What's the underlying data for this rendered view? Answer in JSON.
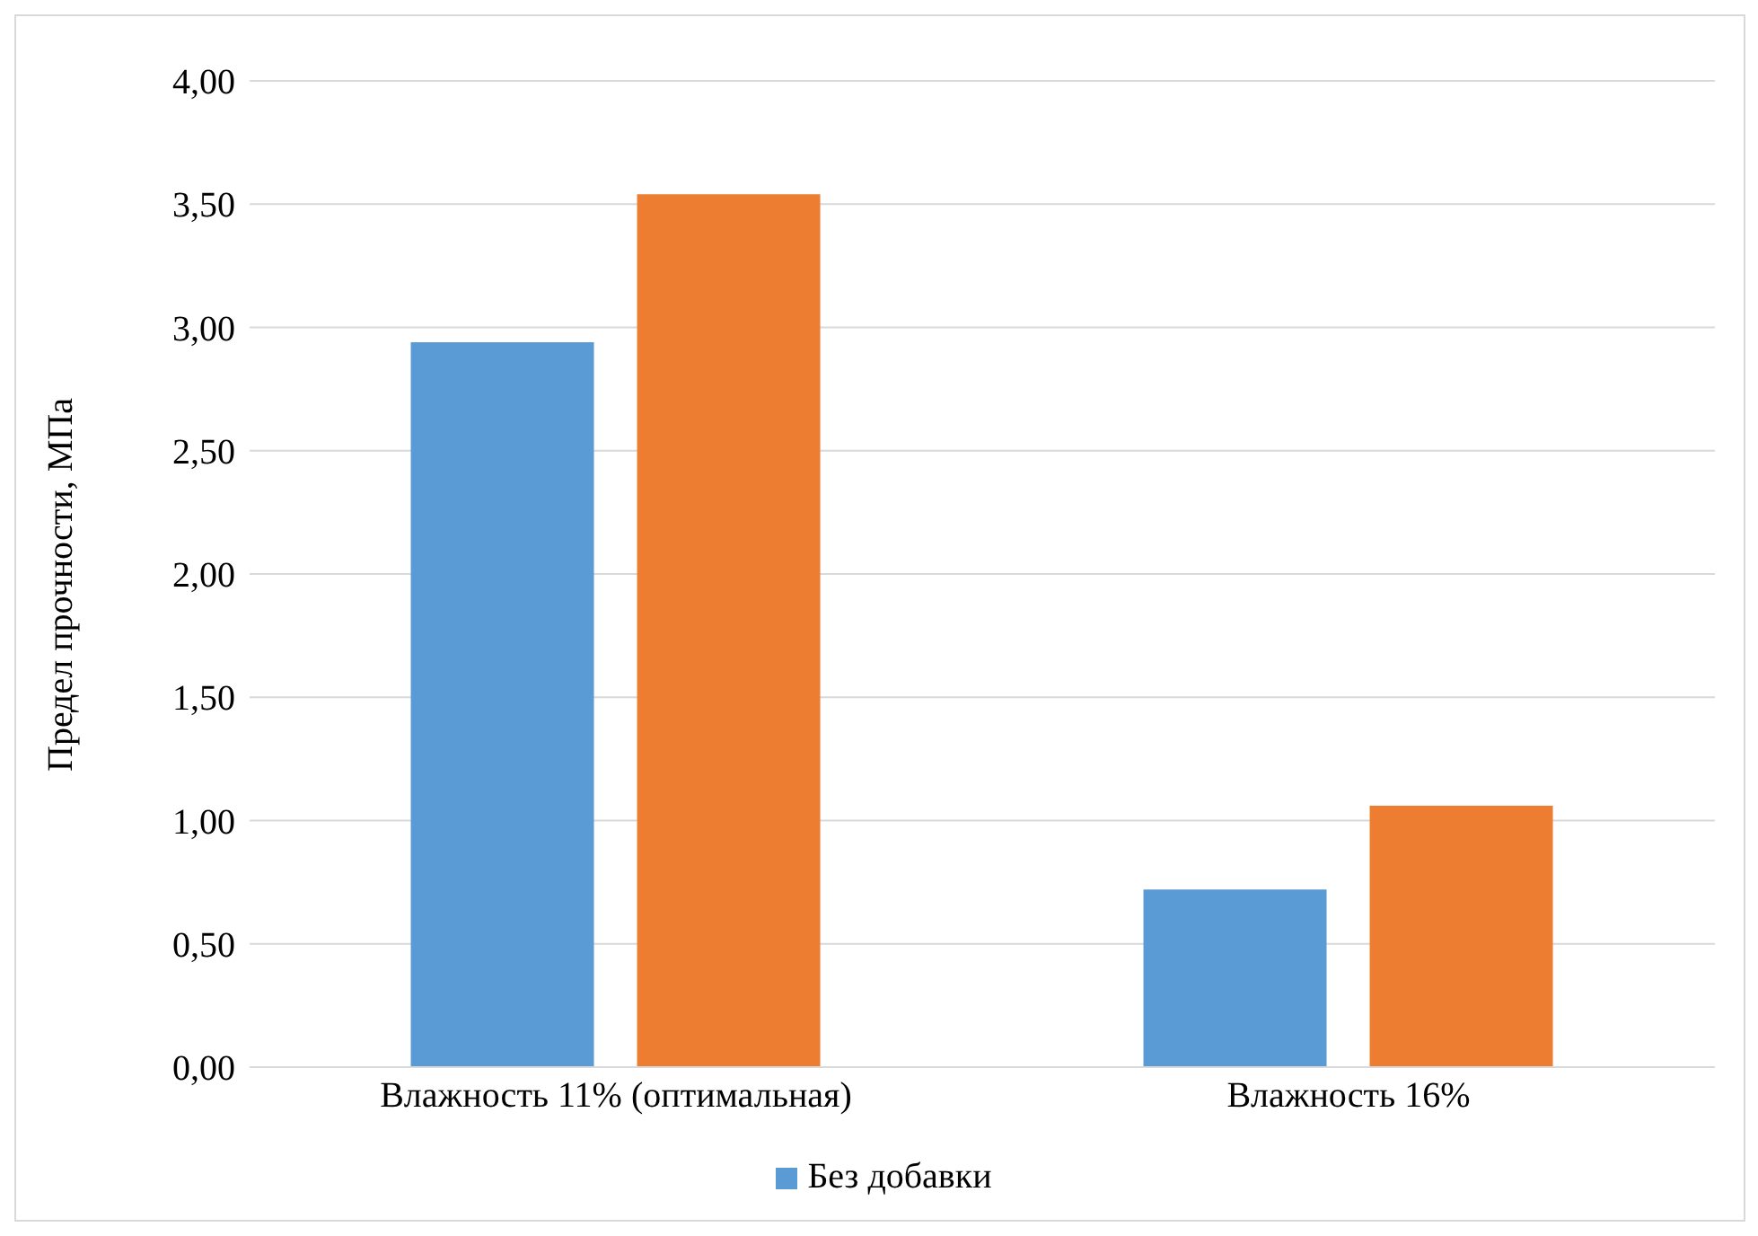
{
  "chart_data": {
    "type": "bar",
    "ylabel": "Предел прочности, МПа",
    "categories": [
      "Влажность 11% (оптимальная)",
      "Влажность 16%"
    ],
    "series": [
      {
        "name": "Без добавки",
        "color": "#5b9bd5",
        "values": [
          2.94,
          0.72
        ]
      },
      {
        "color": "#ed7d31",
        "values": [
          3.54,
          1.06
        ]
      }
    ],
    "ylim": [
      0,
      4
    ],
    "yticks": [
      {
        "value": 0,
        "label": "0,00"
      },
      {
        "value": 0.5,
        "label": "0,50"
      },
      {
        "value": 1,
        "label": "1,00"
      },
      {
        "value": 1.5,
        "label": "1,50"
      },
      {
        "value": 2,
        "label": "2,00"
      },
      {
        "value": 2.5,
        "label": "2,50"
      },
      {
        "value": 3,
        "label": "3,00"
      },
      {
        "value": 3.5,
        "label": "3,50"
      },
      {
        "value": 4,
        "label": "4,00"
      }
    ],
    "grid": "y",
    "legend": "bottom"
  }
}
